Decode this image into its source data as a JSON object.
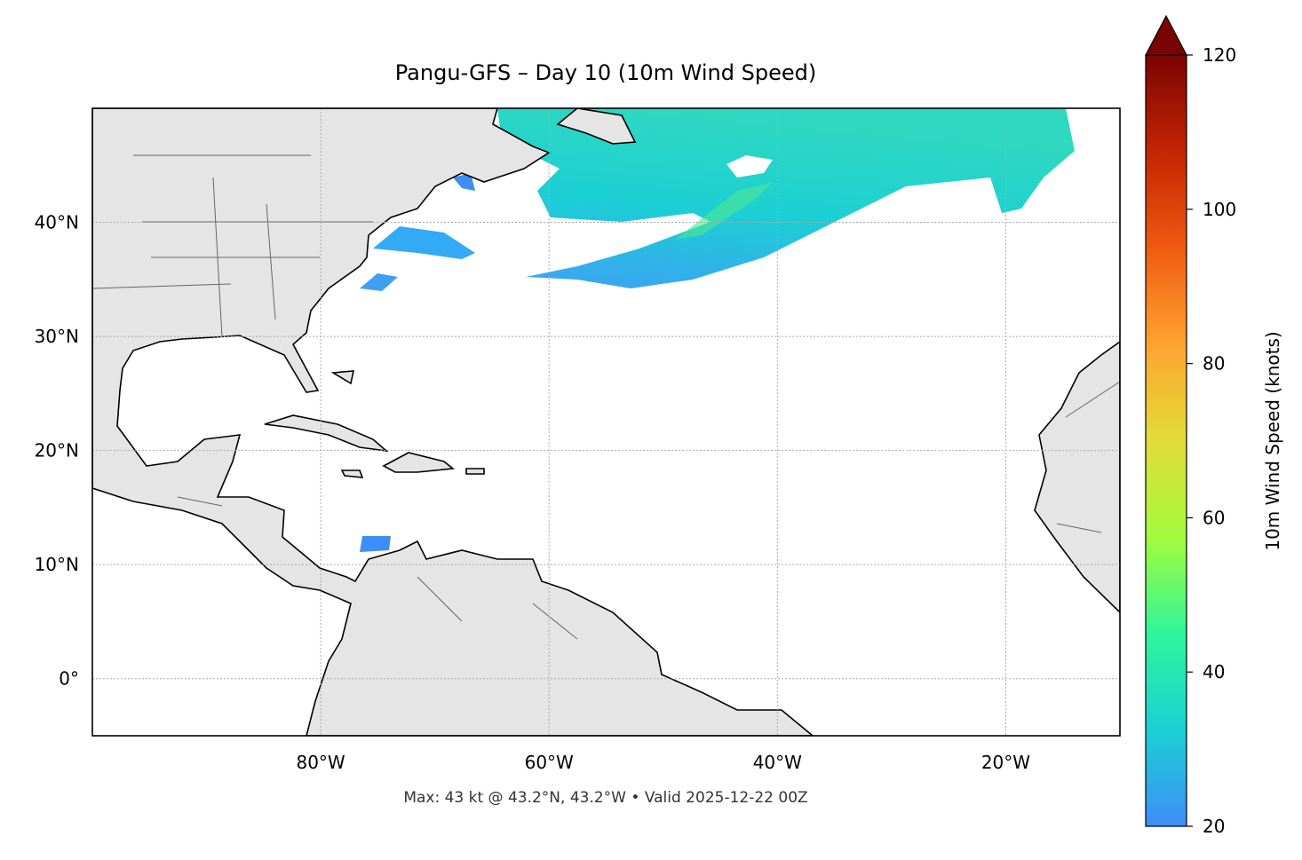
{
  "map": {
    "title": "Pangu-GFS – Day 10 (10m Wind Speed)",
    "footer": "Max: 43 kt @ 43.2°N, 43.2°W • Valid 2025-12-22 00Z",
    "xlim": [
      -100,
      -10
    ],
    "ylim": [
      -5,
      50
    ],
    "xticks": [
      {
        "value": -80,
        "label": "80°W"
      },
      {
        "value": -60,
        "label": "60°W"
      },
      {
        "value": -40,
        "label": "40°W"
      },
      {
        "value": -20,
        "label": "20°W"
      }
    ],
    "yticks": [
      {
        "value": 0,
        "label": "0°"
      },
      {
        "value": 10,
        "label": "10°N"
      },
      {
        "value": 20,
        "label": "20°N"
      },
      {
        "value": 30,
        "label": "30°N"
      },
      {
        "value": 40,
        "label": "40°N"
      }
    ],
    "grid": true,
    "colorbar": {
      "label": "10m Wind Speed (knots)",
      "lim": [
        20,
        120
      ],
      "ticks": [
        20,
        40,
        60,
        80,
        100,
        120
      ],
      "cmap": [
        "#3e8ef7",
        "#1bcfd4",
        "#2ff59a",
        "#a4fc3c",
        "#e2dc38",
        "#fea331",
        "#ef5a11",
        "#c42503",
        "#7a0403"
      ]
    }
  }
}
